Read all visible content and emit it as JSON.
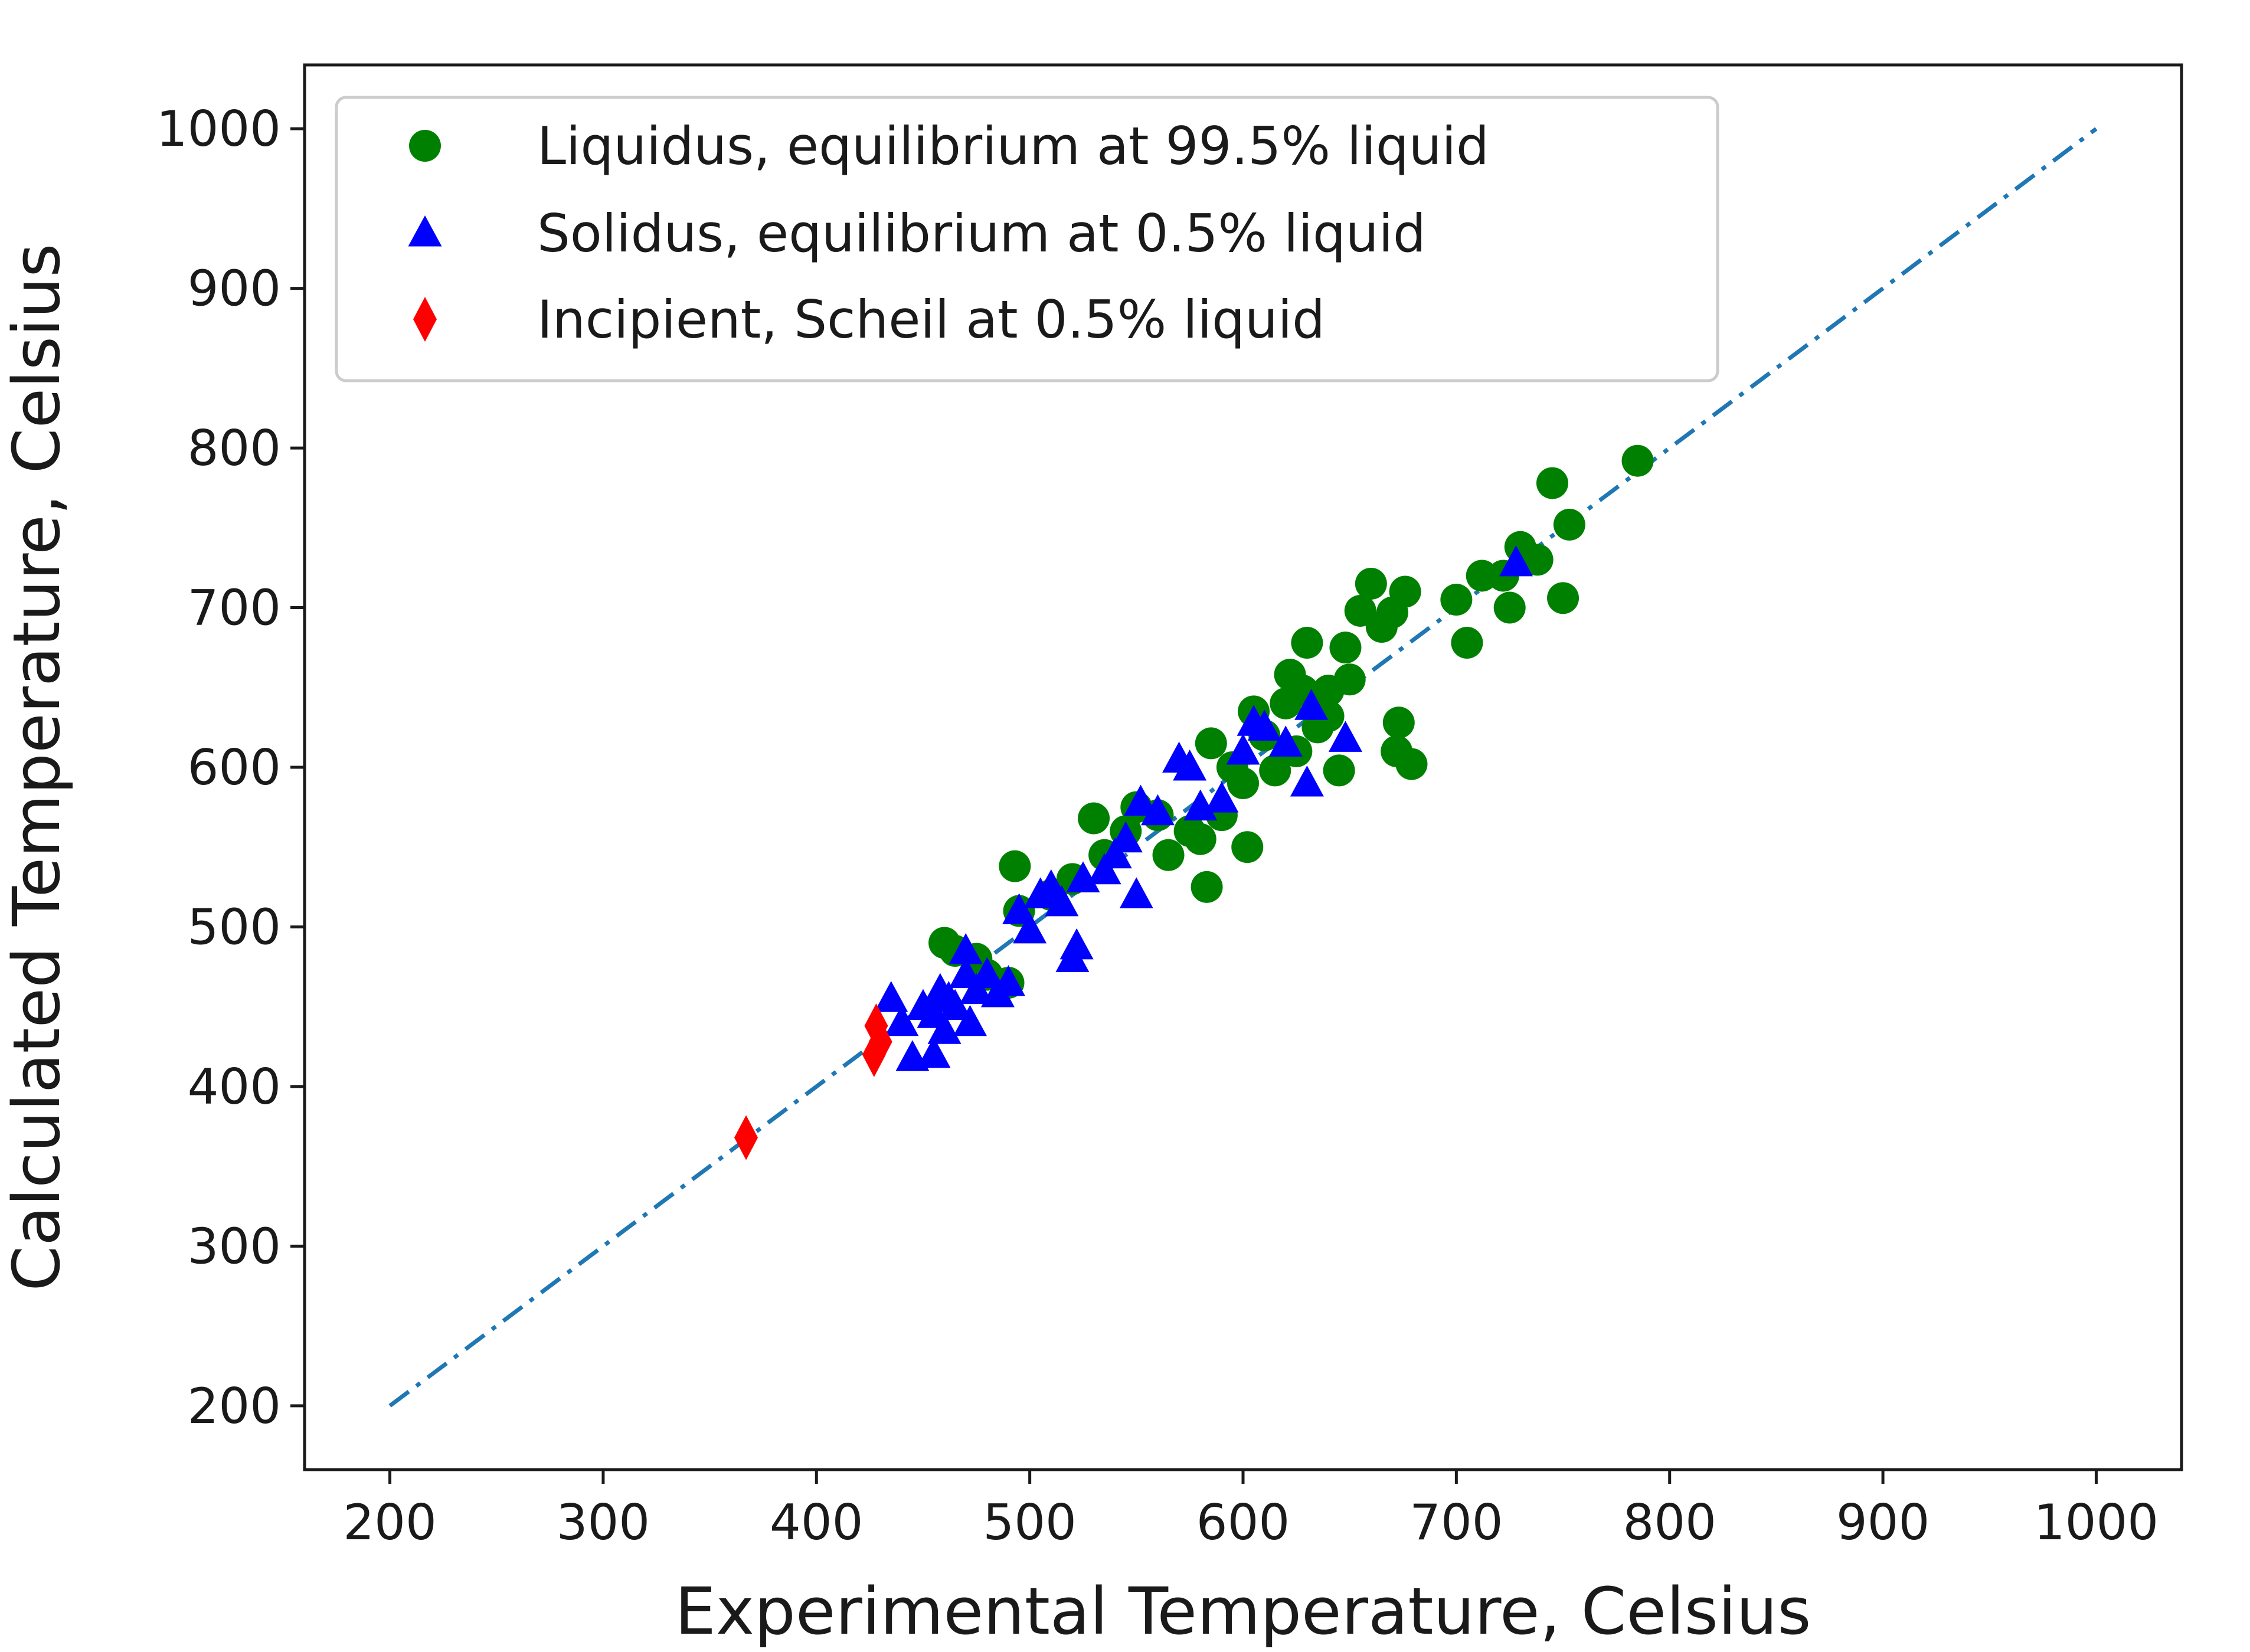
{
  "chart_data": {
    "type": "scatter",
    "title": "",
    "xlabel": "Experimental Temperature, Celsius",
    "ylabel": "Calculated Temperature, Celsius",
    "xlim": [
      160,
      1040
    ],
    "ylim": [
      160,
      1040
    ],
    "xticks": [
      "200",
      "300",
      "400",
      "500",
      "600",
      "700",
      "800",
      "900",
      "1000"
    ],
    "yticks": [
      "200",
      "300",
      "400",
      "500",
      "600",
      "700",
      "800",
      "900",
      "1000"
    ],
    "grid": false,
    "legend_position": "top-left",
    "reference_line": {
      "style": "dash-dot",
      "color": "#1f77b4",
      "from": [
        200,
        200
      ],
      "to": [
        1000,
        1000
      ]
    },
    "series": [
      {
        "name": "Liquidus, equilibrium at 99.5% liquid",
        "marker": "circle",
        "color": "#008000",
        "points": [
          [
            460,
            490
          ],
          [
            465,
            485
          ],
          [
            475,
            480
          ],
          [
            480,
            470
          ],
          [
            490,
            465
          ],
          [
            493,
            538
          ],
          [
            495,
            510
          ],
          [
            510,
            520
          ],
          [
            520,
            530
          ],
          [
            530,
            568
          ],
          [
            535,
            545
          ],
          [
            545,
            560
          ],
          [
            550,
            575
          ],
          [
            560,
            570
          ],
          [
            565,
            545
          ],
          [
            575,
            560
          ],
          [
            580,
            555
          ],
          [
            583,
            525
          ],
          [
            585,
            615
          ],
          [
            590,
            570
          ],
          [
            595,
            600
          ],
          [
            600,
            590
          ],
          [
            602,
            550
          ],
          [
            605,
            635
          ],
          [
            610,
            620
          ],
          [
            615,
            598
          ],
          [
            620,
            640
          ],
          [
            622,
            658
          ],
          [
            628,
            648
          ],
          [
            630,
            678
          ],
          [
            635,
            625
          ],
          [
            640,
            632
          ],
          [
            645,
            598
          ],
          [
            648,
            675
          ],
          [
            650,
            655
          ],
          [
            655,
            698
          ],
          [
            660,
            715
          ],
          [
            665,
            688
          ],
          [
            670,
            697
          ],
          [
            673,
            628
          ],
          [
            676,
            710
          ],
          [
            672,
            610
          ],
          [
            679,
            602
          ],
          [
            700,
            705
          ],
          [
            705,
            678
          ],
          [
            712,
            720
          ],
          [
            722,
            720
          ],
          [
            725,
            700
          ],
          [
            730,
            738
          ],
          [
            738,
            730
          ],
          [
            745,
            778
          ],
          [
            750,
            706
          ],
          [
            753,
            752
          ],
          [
            785,
            792
          ],
          [
            640,
            648
          ],
          [
            625,
            610
          ]
        ]
      },
      {
        "name": "Solidus, equilibrium at 0.5% liquid",
        "marker": "triangle",
        "color": "#0000ff",
        "points": [
          [
            435,
            455
          ],
          [
            440,
            440
          ],
          [
            445,
            418
          ],
          [
            450,
            450
          ],
          [
            455,
            420
          ],
          [
            458,
            460
          ],
          [
            460,
            435
          ],
          [
            462,
            455
          ],
          [
            465,
            450
          ],
          [
            470,
            485
          ],
          [
            472,
            440
          ],
          [
            475,
            460
          ],
          [
            480,
            470
          ],
          [
            485,
            458
          ],
          [
            490,
            465
          ],
          [
            495,
            510
          ],
          [
            500,
            498
          ],
          [
            505,
            520
          ],
          [
            510,
            525
          ],
          [
            515,
            515
          ],
          [
            520,
            480
          ],
          [
            522,
            488
          ],
          [
            525,
            530
          ],
          [
            535,
            535
          ],
          [
            540,
            545
          ],
          [
            545,
            555
          ],
          [
            550,
            520
          ],
          [
            552,
            578
          ],
          [
            560,
            572
          ],
          [
            570,
            605
          ],
          [
            575,
            600
          ],
          [
            580,
            575
          ],
          [
            590,
            580
          ],
          [
            600,
            610
          ],
          [
            605,
            628
          ],
          [
            610,
            625
          ],
          [
            620,
            615
          ],
          [
            630,
            590
          ],
          [
            632,
            638
          ],
          [
            648,
            618
          ],
          [
            728,
            728
          ],
          [
            470,
            470
          ],
          [
            455,
            445
          ]
        ]
      },
      {
        "name": "Incipient, Scheil at 0.5% liquid",
        "marker": "diamond",
        "color": "#ff0000",
        "points": [
          [
            367,
            368
          ],
          [
            427,
            420
          ],
          [
            428,
            438
          ],
          [
            430,
            428
          ]
        ]
      }
    ]
  }
}
